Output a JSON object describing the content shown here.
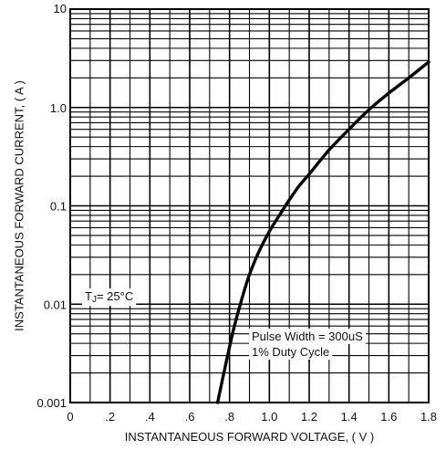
{
  "chart_data": {
    "type": "line",
    "title": "",
    "xlabel": "INSTANTANEOUS FORWARD VOLTAGE, ( V )",
    "ylabel": "INSTANTANEOUS FORWARD CURRENT, ( A )",
    "xlim": [
      0,
      1.8
    ],
    "ylim": [
      0.001,
      10
    ],
    "y_scale": "log",
    "grid": true,
    "x_ticks": [
      {
        "value": 0,
        "label": "0"
      },
      {
        "value": 0.2,
        "label": ".2"
      },
      {
        "value": 0.4,
        "label": ".4"
      },
      {
        "value": 0.6,
        "label": ".6"
      },
      {
        "value": 0.8,
        "label": ".8"
      },
      {
        "value": 1.0,
        "label": "1.0"
      },
      {
        "value": 1.2,
        "label": "1.2"
      },
      {
        "value": 1.4,
        "label": "1.4"
      },
      {
        "value": 1.6,
        "label": "1.6"
      },
      {
        "value": 1.8,
        "label": "1.8"
      }
    ],
    "y_ticks": [
      {
        "value": 0.001,
        "label": "0.001"
      },
      {
        "value": 0.01,
        "label": "0.01"
      },
      {
        "value": 0.1,
        "label": "0.1"
      },
      {
        "value": 1,
        "label": "1.0"
      },
      {
        "value": 10,
        "label": "10"
      }
    ],
    "series": [
      {
        "x": [
          0.74,
          0.78,
          0.82,
          0.86,
          0.9,
          0.95,
          1.0,
          1.05,
          1.1,
          1.15,
          1.2,
          1.3,
          1.4,
          1.5,
          1.6,
          1.7,
          1.8
        ],
        "y": [
          0.001,
          0.0024,
          0.0055,
          0.011,
          0.02,
          0.035,
          0.055,
          0.08,
          0.115,
          0.16,
          0.21,
          0.37,
          0.6,
          0.95,
          1.4,
          2.0,
          2.9
        ]
      }
    ],
    "annotations": {
      "tj": "TJ= 25°C",
      "pulse": "Pulse Width = 300uS",
      "duty": "1% Duty Cycle"
    }
  }
}
